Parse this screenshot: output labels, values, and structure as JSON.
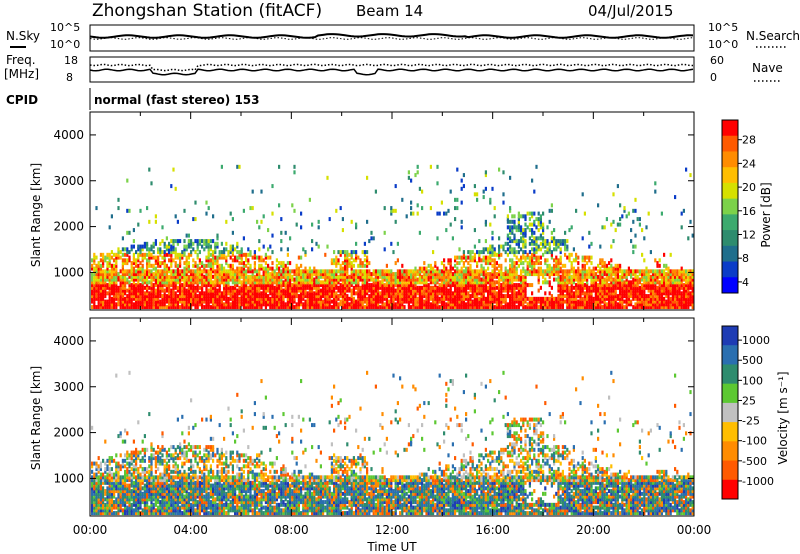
{
  "header": {
    "station": "Zhongshan Station (fitACF)",
    "beam": "Beam 14",
    "date": "04/Jul/2015"
  },
  "status_panels": {
    "nsky_label": "N.Sky",
    "nsearch_label": "N.Search",
    "noise_ticks_left": [
      "10^5",
      "10^0"
    ],
    "noise_ticks_right": [
      "10^5",
      "10^0"
    ],
    "freq_label": "Freq.",
    "freq_unit": "[MHz]",
    "freq_ticks": [
      "18",
      "8"
    ],
    "nave_label": "Nave",
    "nave_ticks": [
      "60",
      "0"
    ],
    "cpid_label": "CPID",
    "cpid_value": "normal (fast stereo) 153"
  },
  "chart_data": [
    {
      "type": "heatmap",
      "title": "",
      "xlabel": "",
      "ylabel": "Slant Range [km]",
      "xlim": [
        0,
        24
      ],
      "ylim": [
        180,
        4500
      ],
      "yticks": [
        "1000",
        "2000",
        "3000",
        "4000"
      ],
      "colorbar": {
        "label": "Power [dB]",
        "ticks": [
          "28",
          "24",
          "20",
          "16",
          "12",
          "8",
          "4"
        ],
        "colors": [
          "#ff0000",
          "#ff5a00",
          "#ff8c00",
          "#ffbe00",
          "#d6e000",
          "#7cd24a",
          "#3caa6e",
          "#2e8c6e",
          "#1f6e8c",
          "#0a3cc8",
          "#0000ff"
        ]
      }
    },
    {
      "type": "heatmap",
      "title": "",
      "xlabel": "Time UT",
      "ylabel": "Slant Range [km]",
      "xlim": [
        0,
        24
      ],
      "ylim": [
        180,
        4500
      ],
      "xticks": [
        "00:00",
        "04:00",
        "08:00",
        "12:00",
        "16:00",
        "20:00",
        "00:00"
      ],
      "yticks": [
        "1000",
        "2000",
        "3000",
        "4000"
      ],
      "colorbar": {
        "label": "Velocity [m s⁻¹]",
        "ticks": [
          "1000",
          "500",
          "100",
          "25",
          "-25",
          "-100",
          "-500",
          "-1000"
        ],
        "colors": [
          "#1e3cb4",
          "#2a6fb0",
          "#2e8c6e",
          "#5cc832",
          "#c0c0c0",
          "#ffbe00",
          "#ff8c00",
          "#ff5a00",
          "#ff0000"
        ]
      }
    }
  ]
}
